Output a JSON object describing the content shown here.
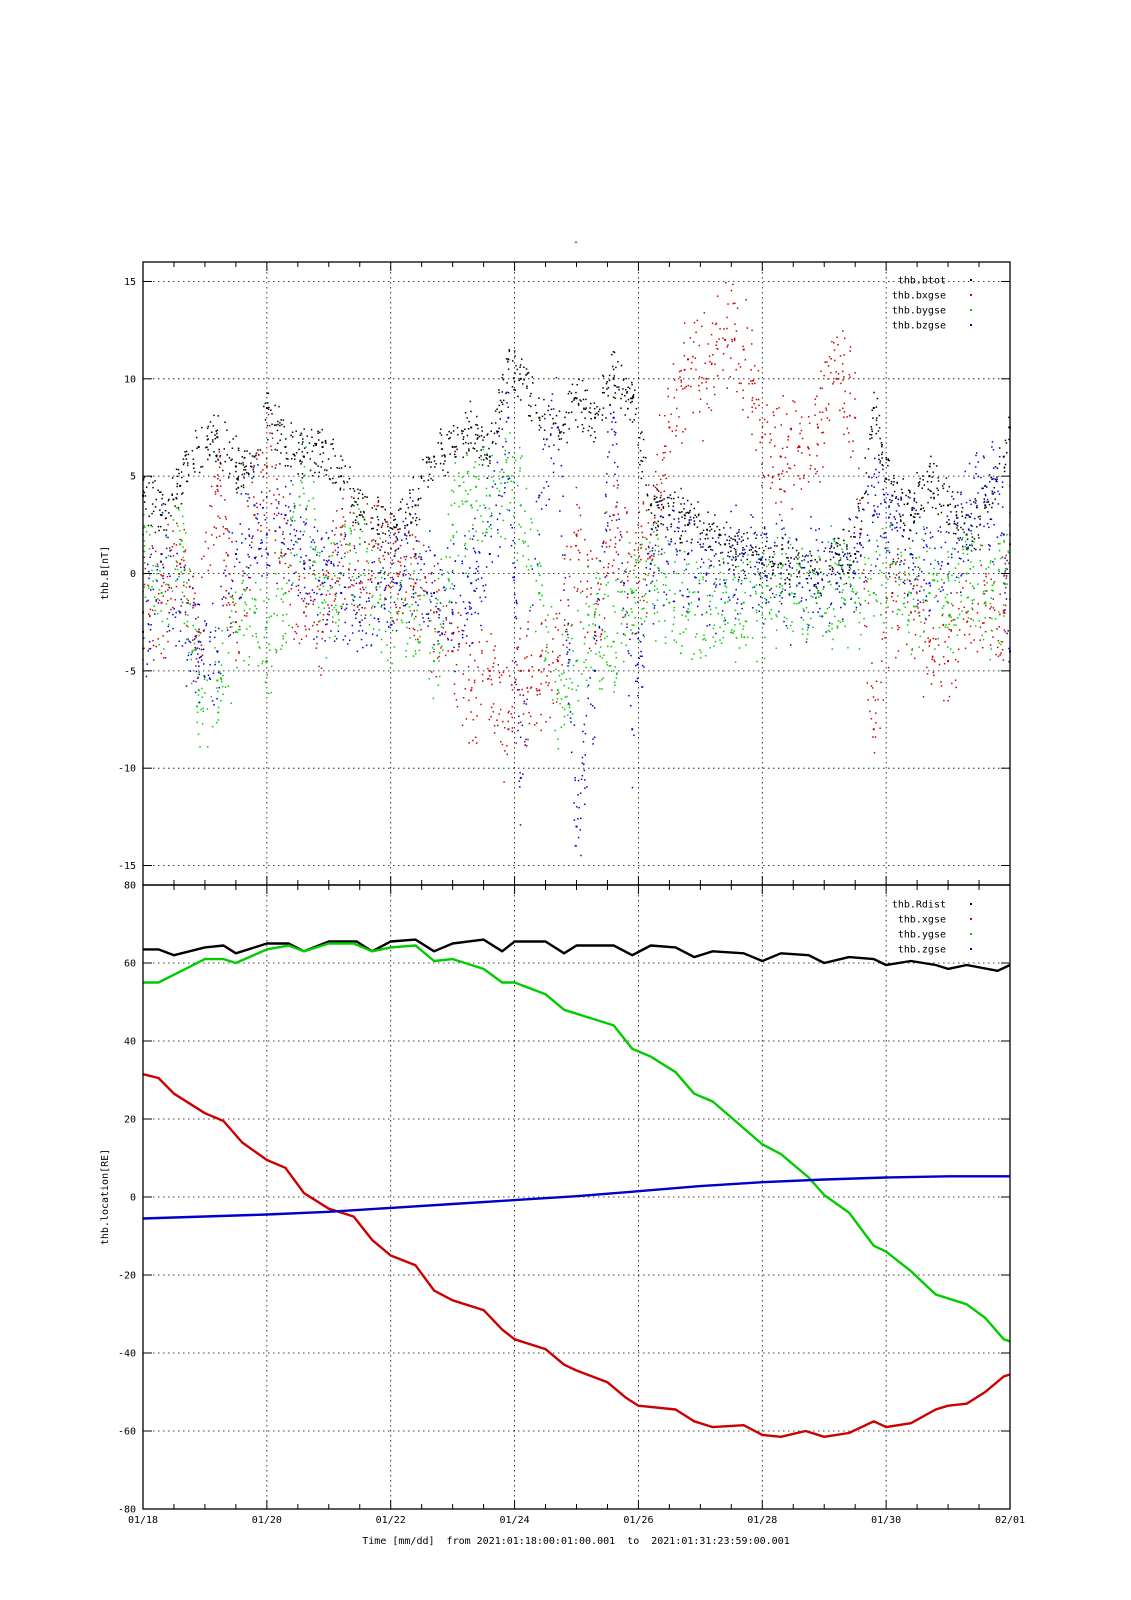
{
  "chart_data": [
    {
      "type": "scatter",
      "title": "-",
      "ylabel": "thb.B[nT]",
      "ylim": [
        -16,
        16
      ],
      "yticks": [
        -15,
        -10,
        -5,
        0,
        5,
        10,
        15
      ],
      "xlim_days": [
        18,
        32
      ],
      "grid": true,
      "legend": "top-right",
      "series": [
        {
          "name": "thb.btot",
          "color": "#000000",
          "x": [
            18.0,
            18.3,
            18.6,
            18.9,
            19.2,
            19.5,
            19.8,
            20.0,
            20.3,
            20.6,
            20.9,
            21.2,
            21.5,
            21.8,
            22.1,
            22.4,
            22.7,
            23.0,
            23.3,
            23.6,
            23.9,
            24.1,
            24.4,
            24.7,
            25.0,
            25.3,
            25.6,
            25.9,
            26.2,
            26.5,
            26.8,
            27.1,
            27.4,
            27.7,
            28.0,
            28.3,
            28.6,
            28.9,
            29.2,
            29.5,
            29.8,
            30.1,
            30.4,
            30.7,
            31.0,
            31.3,
            31.6,
            31.9,
            32.0
          ],
          "y": [
            4.0,
            3.0,
            4.5,
            6.5,
            7.0,
            5.5,
            6.0,
            8.5,
            6.5,
            6.0,
            6.5,
            5.0,
            3.0,
            2.5,
            2.5,
            3.5,
            6.0,
            6.5,
            7.5,
            6.0,
            11.0,
            10.0,
            8.0,
            7.5,
            9.0,
            8.0,
            10.0,
            9.0,
            3.5,
            3.0,
            2.5,
            2.0,
            1.5,
            1.0,
            0.5,
            0.5,
            0.5,
            0.0,
            1.0,
            1.0,
            8.5,
            4.0,
            3.0,
            5.0,
            3.5,
            2.0,
            3.5,
            6.0,
            7.5
          ]
        },
        {
          "name": "thb.bxgse",
          "color": "#cc0000",
          "x": [
            18.0,
            18.3,
            18.6,
            18.9,
            19.2,
            19.5,
            19.8,
            20.0,
            20.3,
            20.6,
            20.9,
            21.2,
            21.5,
            21.8,
            22.1,
            22.4,
            22.7,
            23.0,
            23.3,
            23.6,
            23.9,
            24.1,
            24.4,
            24.7,
            25.0,
            25.3,
            25.6,
            25.9,
            26.2,
            26.5,
            26.8,
            27.1,
            27.4,
            27.7,
            28.0,
            28.3,
            28.6,
            28.9,
            29.2,
            29.5,
            29.8,
            30.1,
            30.4,
            30.7,
            31.0,
            31.3,
            31.6,
            31.9,
            32.0
          ],
          "y": [
            -2.0,
            -1.5,
            0.5,
            -3.0,
            4.5,
            -2.5,
            3.0,
            5.5,
            1.0,
            -2.0,
            -3.0,
            2.0,
            -0.5,
            1.5,
            0.0,
            -0.5,
            -2.0,
            -4.0,
            -6.0,
            -5.0,
            -8.0,
            -5.0,
            -6.0,
            -4.5,
            2.0,
            -3.0,
            3.0,
            -1.0,
            2.0,
            7.5,
            11.0,
            10.0,
            12.0,
            11.5,
            7.0,
            6.0,
            6.5,
            7.5,
            10.0,
            8.0,
            -8.0,
            -1.0,
            -2.0,
            -3.5,
            -4.5,
            -2.0,
            -1.5,
            -2.0,
            1.5
          ]
        },
        {
          "name": "thb.bygse",
          "color": "#00cc00",
          "x": [
            18.0,
            18.3,
            18.6,
            18.9,
            19.2,
            19.5,
            19.8,
            20.0,
            20.3,
            20.6,
            20.9,
            21.2,
            21.5,
            21.8,
            22.1,
            22.4,
            22.7,
            23.0,
            23.3,
            23.6,
            23.9,
            24.1,
            24.4,
            24.7,
            25.0,
            25.3,
            25.6,
            25.9,
            26.2,
            26.5,
            26.8,
            27.1,
            27.4,
            27.7,
            28.0,
            28.3,
            28.6,
            28.9,
            29.2,
            29.5,
            29.8,
            30.1,
            30.4,
            30.7,
            31.0,
            31.3,
            31.6,
            31.9,
            32.0
          ],
          "y": [
            2.0,
            -1.0,
            1.5,
            -6.0,
            -5.5,
            -3.0,
            -2.0,
            -4.5,
            -1.0,
            5.0,
            -1.5,
            0.0,
            1.5,
            -1.5,
            -2.0,
            -1.0,
            -4.5,
            2.5,
            3.5,
            4.0,
            5.0,
            3.5,
            -1.0,
            -6.0,
            -4.5,
            -2.0,
            -3.5,
            -1.0,
            -0.5,
            -1.5,
            -2.0,
            -2.0,
            -1.5,
            -1.5,
            -1.0,
            -1.0,
            -1.5,
            -1.0,
            -0.5,
            -1.5,
            -1.0,
            0.5,
            -1.0,
            -1.0,
            -1.5,
            0.0,
            -1.5,
            -0.5,
            2.0
          ]
        },
        {
          "name": "thb.bzgse",
          "color": "#0000cc",
          "x": [
            18.0,
            18.3,
            18.6,
            18.9,
            19.2,
            19.5,
            19.8,
            20.0,
            20.3,
            20.6,
            20.9,
            21.2,
            21.5,
            21.8,
            22.1,
            22.4,
            22.7,
            23.0,
            23.3,
            23.6,
            23.9,
            24.1,
            24.4,
            24.7,
            25.0,
            25.3,
            25.6,
            25.9,
            26.2,
            26.5,
            26.8,
            27.1,
            27.4,
            27.7,
            28.0,
            28.3,
            28.6,
            28.9,
            29.2,
            29.5,
            29.8,
            30.1,
            30.4,
            30.7,
            31.0,
            31.3,
            31.6,
            31.9,
            32.0
          ],
          "y": [
            -3.0,
            1.0,
            -2.0,
            -3.5,
            -4.0,
            1.0,
            3.5,
            2.0,
            3.0,
            0.5,
            -0.5,
            -1.0,
            -2.5,
            -0.5,
            -0.5,
            1.0,
            -1.0,
            -2.0,
            -0.5,
            1.0,
            8.0,
            -10.5,
            4.0,
            7.5,
            -13.0,
            -5.0,
            8.0,
            -8.0,
            0.5,
            1.5,
            1.0,
            0.0,
            -0.5,
            1.0,
            0.5,
            0.0,
            -0.5,
            -0.5,
            -0.5,
            0.0,
            3.0,
            2.5,
            1.0,
            -0.5,
            0.5,
            3.0,
            4.5,
            2.0,
            -4.0
          ]
        }
      ]
    },
    {
      "type": "line",
      "ylabel": "thb.location[RE]",
      "xlabel": "Time [mm/dd]  from 2021:01:18:00:01:00.001  to  2021:01:31:23:59:00.001",
      "ylim": [
        -80,
        80
      ],
      "yticks": [
        -80,
        -60,
        -40,
        -20,
        0,
        20,
        40,
        60,
        80
      ],
      "xlim_days": [
        18,
        32
      ],
      "xticks": [
        "01/18",
        "01/20",
        "01/22",
        "01/24",
        "01/26",
        "01/28",
        "01/30",
        "02/01"
      ],
      "grid": true,
      "legend": "top-right",
      "series": [
        {
          "name": "thb.Rdist",
          "color": "#000000",
          "x": [
            18.0,
            18.25,
            18.5,
            19.0,
            19.3,
            19.5,
            20.0,
            20.35,
            20.6,
            21.0,
            21.45,
            21.7,
            22.0,
            22.4,
            22.7,
            23.0,
            23.5,
            23.8,
            24.0,
            24.5,
            24.8,
            25.0,
            25.6,
            25.9,
            26.2,
            26.6,
            26.9,
            27.2,
            27.7,
            28.0,
            28.3,
            28.75,
            29.0,
            29.4,
            29.8,
            30.0,
            30.4,
            30.8,
            31.0,
            31.3,
            31.8,
            32.0
          ],
          "y": [
            63.5,
            63.5,
            62.0,
            64.0,
            64.5,
            62.5,
            65.0,
            65.0,
            63.0,
            65.5,
            65.5,
            63.0,
            65.5,
            66.0,
            63.0,
            65.0,
            66.0,
            63.0,
            65.5,
            65.5,
            62.5,
            64.5,
            64.5,
            62.0,
            64.5,
            64.0,
            61.5,
            63.0,
            62.5,
            60.5,
            62.5,
            62.0,
            60.0,
            61.5,
            61.0,
            59.5,
            60.5,
            59.5,
            58.5,
            59.5,
            58.0,
            59.5
          ]
        },
        {
          "name": "thb.xgse",
          "color": "#cc0000",
          "x": [
            18.0,
            18.25,
            18.5,
            19.0,
            19.3,
            19.6,
            20.0,
            20.3,
            20.6,
            21.0,
            21.4,
            21.7,
            22.0,
            22.4,
            22.7,
            23.0,
            23.5,
            23.8,
            24.0,
            24.5,
            24.8,
            25.0,
            25.5,
            25.8,
            26.0,
            26.6,
            26.9,
            27.2,
            27.7,
            28.0,
            28.3,
            28.7,
            29.0,
            29.4,
            29.8,
            30.0,
            30.4,
            30.8,
            31.0,
            31.3,
            31.6,
            31.9,
            32.0
          ],
          "y": [
            31.5,
            30.5,
            26.5,
            21.5,
            19.5,
            14.0,
            9.5,
            7.5,
            1.0,
            -3.0,
            -5.0,
            -11.0,
            -15.0,
            -17.5,
            -24.0,
            -26.5,
            -29.0,
            -34.0,
            -36.5,
            -39.0,
            -43.0,
            -44.5,
            -47.5,
            -51.5,
            -53.5,
            -54.5,
            -57.5,
            -59.0,
            -58.5,
            -61.0,
            -61.5,
            -60.0,
            -61.5,
            -60.5,
            -57.5,
            -59.0,
            -58.0,
            -54.5,
            -53.5,
            -53.0,
            -50.0,
            -46.0,
            -45.5
          ]
        },
        {
          "name": "thb.ygse",
          "color": "#00cc00",
          "x": [
            18.0,
            18.25,
            18.5,
            19.0,
            19.3,
            19.5,
            20.0,
            20.35,
            20.6,
            21.0,
            21.4,
            21.7,
            22.0,
            22.4,
            22.7,
            23.0,
            23.5,
            23.8,
            24.0,
            24.5,
            24.8,
            25.0,
            25.6,
            25.9,
            26.2,
            26.6,
            26.9,
            27.2,
            27.6,
            28.0,
            28.3,
            28.75,
            29.0,
            29.4,
            29.8,
            30.0,
            30.4,
            30.8,
            31.0,
            31.3,
            31.6,
            31.9,
            32.0
          ],
          "y": [
            55.0,
            55.0,
            57.0,
            61.0,
            61.0,
            60.0,
            63.5,
            64.5,
            63.0,
            65.0,
            65.0,
            63.0,
            64.0,
            64.5,
            60.5,
            61.0,
            58.5,
            55.0,
            55.0,
            52.0,
            48.0,
            47.0,
            44.0,
            38.0,
            36.0,
            32.0,
            26.5,
            24.5,
            19.0,
            13.5,
            11.0,
            5.0,
            0.5,
            -4.0,
            -12.5,
            -14.0,
            -19.0,
            -25.0,
            -26.0,
            -27.5,
            -31.0,
            -36.5,
            -37.0
          ]
        },
        {
          "name": "thb.zgse",
          "color": "#0000cc",
          "x": [
            18.0,
            19.0,
            20.0,
            21.0,
            22.0,
            23.0,
            24.0,
            25.0,
            26.0,
            27.0,
            28.0,
            29.0,
            30.0,
            31.0,
            32.0
          ],
          "y": [
            -5.5,
            -5.0,
            -4.5,
            -3.8,
            -2.8,
            -1.8,
            -0.8,
            0.2,
            1.5,
            2.8,
            3.8,
            4.5,
            5.0,
            5.3,
            5.3
          ]
        }
      ]
    }
  ]
}
